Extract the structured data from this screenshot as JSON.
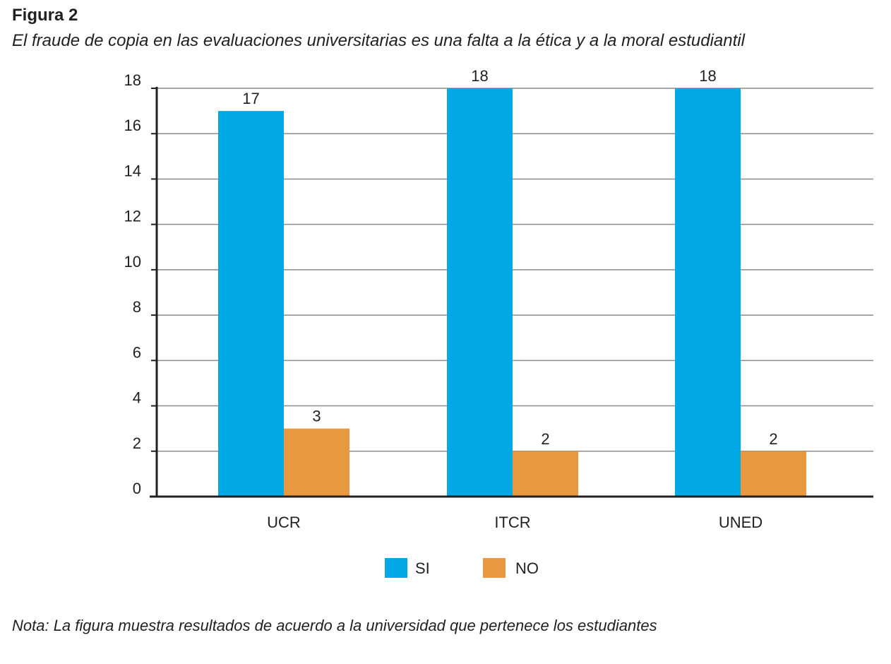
{
  "figure_label": "Figura 2",
  "figure_title": "El fraude de copia en las evaluaciones universitarias es una falta a la ética y a la moral estudiantil",
  "note": "Nota: La figura muestra resultados de acuerdo a la universidad que pertenece los estudiantes",
  "chart_data": {
    "type": "bar",
    "title": "El fraude de copia en las evaluaciones universitarias es una falta a la ética y a la moral estudiantil",
    "xlabel": "",
    "ylabel": "",
    "categories": [
      "UCR",
      "ITCR",
      "UNED"
    ],
    "series": [
      {
        "name": "SI",
        "values": [
          17,
          18,
          18
        ],
        "color": "#00a8e6"
      },
      {
        "name": "NO",
        "values": [
          3,
          2,
          2
        ],
        "color": "#e8993f"
      }
    ],
    "ylim": [
      0,
      18
    ],
    "yticks": [
      0,
      2,
      4,
      6,
      8,
      10,
      12,
      14,
      16,
      18
    ],
    "grid": true,
    "legend_position": "bottom-center",
    "data_labels": true
  }
}
